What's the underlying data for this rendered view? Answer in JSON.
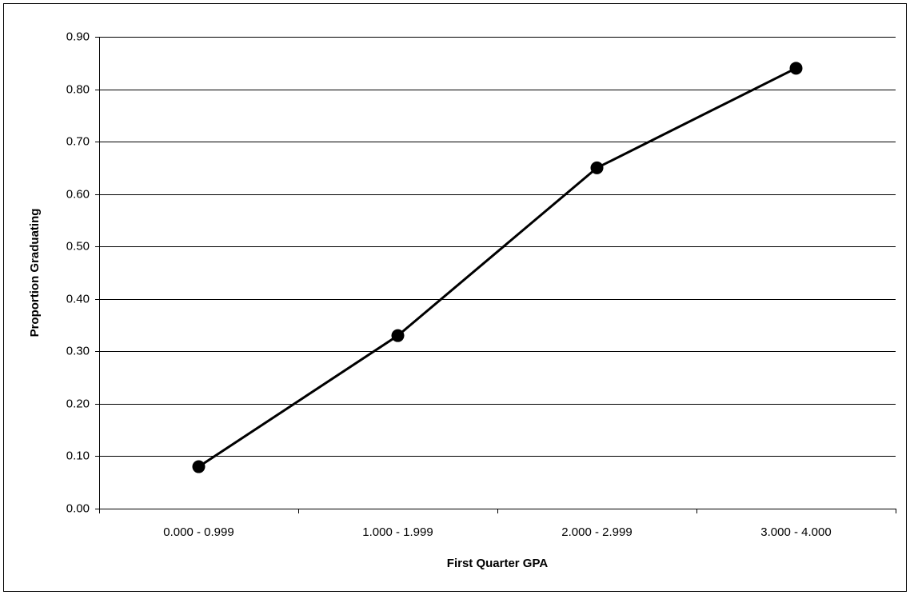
{
  "chart_data": {
    "type": "line",
    "x_label": "First Quarter GPA",
    "y_label": "Proportion Graduating",
    "categories": [
      "0.000 - 0.999",
      "1.000 - 1.999",
      "2.000 - 2.999",
      "3.000 - 4.000"
    ],
    "values": [
      0.08,
      0.33,
      0.65,
      0.84
    ],
    "color": "#000000",
    "ylim": [
      0,
      0.9
    ],
    "yticks": [
      {
        "value": 0,
        "label": "0.00"
      },
      {
        "value": 0.1,
        "label": "0.10"
      },
      {
        "value": 0.2,
        "label": "0.20"
      },
      {
        "value": 0.3,
        "label": "0.30"
      },
      {
        "value": 0.4,
        "label": "0.40"
      },
      {
        "value": 0.5,
        "label": "0.50"
      },
      {
        "value": 0.6,
        "label": "0.60"
      },
      {
        "value": 0.7,
        "label": "0.70"
      },
      {
        "value": 0.8,
        "label": "0.80"
      },
      {
        "value": 0.9,
        "label": "0.90"
      }
    ],
    "grid": true
  }
}
